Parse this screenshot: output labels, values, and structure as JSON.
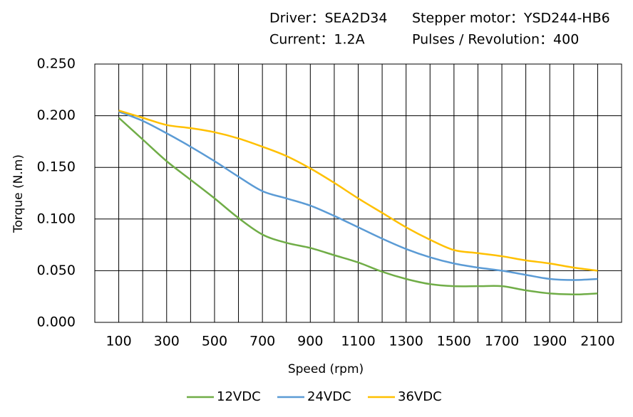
{
  "chart_data": {
    "type": "line",
    "annotations": [
      "Driver：SEA2D34",
      "Stepper motor：YSD244-HB6",
      "Current：1.2A",
      "Pulses / Revolution：400"
    ],
    "x_label": "Speed (rpm)",
    "y_label": "Torque (N.m)",
    "x": [
      100,
      200,
      300,
      400,
      500,
      600,
      700,
      800,
      900,
      1000,
      1100,
      1200,
      1300,
      1400,
      1500,
      1600,
      1700,
      1800,
      1900,
      2000,
      2100
    ],
    "xlim": [
      0,
      2200
    ],
    "xticks": [
      100,
      300,
      500,
      700,
      900,
      1100,
      1300,
      1500,
      1700,
      1900,
      2100
    ],
    "ylim": [
      0,
      0.25
    ],
    "yticks": [
      {
        "value": 0,
        "label": "0.000"
      },
      {
        "value": 0.05,
        "label": "0.050"
      },
      {
        "value": 0.1,
        "label": "0.100"
      },
      {
        "value": 0.15,
        "label": "0.150"
      },
      {
        "value": 0.2,
        "label": "0.200"
      },
      {
        "value": 0.25,
        "label": "0.250"
      }
    ],
    "grid": true,
    "smooth": true,
    "legend": "bottom",
    "series": [
      {
        "name": "12VDC",
        "color": "#70ad47",
        "values": [
          0.198,
          0.177,
          0.156,
          0.138,
          0.12,
          0.101,
          0.085,
          0.077,
          0.072,
          0.065,
          0.058,
          0.049,
          0.042,
          0.037,
          0.035,
          0.035,
          0.035,
          0.031,
          0.028,
          0.027,
          0.028
        ]
      },
      {
        "name": "24VDC",
        "color": "#5b9bd5",
        "values": [
          0.204,
          0.195,
          0.183,
          0.17,
          0.156,
          0.141,
          0.127,
          0.12,
          0.113,
          0.103,
          0.092,
          0.081,
          0.071,
          0.063,
          0.057,
          0.053,
          0.05,
          0.046,
          0.042,
          0.041,
          0.042
        ]
      },
      {
        "name": "36VDC",
        "color": "#ffc000",
        "values": [
          0.205,
          0.198,
          0.191,
          0.188,
          0.184,
          0.178,
          0.17,
          0.161,
          0.149,
          0.135,
          0.12,
          0.106,
          0.092,
          0.08,
          0.07,
          0.067,
          0.064,
          0.06,
          0.057,
          0.053,
          0.05
        ]
      }
    ]
  }
}
